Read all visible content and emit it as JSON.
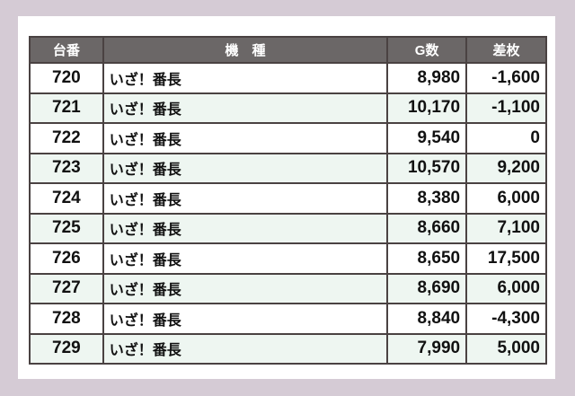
{
  "headers": [
    "台番",
    "機　種",
    "G数",
    "差枚"
  ],
  "rows": [
    {
      "no": "720",
      "model": "いざ！番長",
      "games": "8,980",
      "diff": "-1,600"
    },
    {
      "no": "721",
      "model": "いざ！番長",
      "games": "10,170",
      "diff": "-1,100"
    },
    {
      "no": "722",
      "model": "いざ！番長",
      "games": "9,540",
      "diff": "0"
    },
    {
      "no": "723",
      "model": "いざ！番長",
      "games": "10,570",
      "diff": "9,200"
    },
    {
      "no": "724",
      "model": "いざ！番長",
      "games": "8,380",
      "diff": "6,000"
    },
    {
      "no": "725",
      "model": "いざ！番長",
      "games": "8,660",
      "diff": "7,100"
    },
    {
      "no": "726",
      "model": "いざ！番長",
      "games": "8,650",
      "diff": "17,500"
    },
    {
      "no": "727",
      "model": "いざ！番長",
      "games": "8,690",
      "diff": "6,000"
    },
    {
      "no": "728",
      "model": "いざ！番長",
      "games": "8,840",
      "diff": "-4,300"
    },
    {
      "no": "729",
      "model": "いざ！番長",
      "games": "7,990",
      "diff": "5,000"
    }
  ],
  "colors": {
    "header_bg": "#6b6767",
    "alt_row_bg": "#eef6f1",
    "page_bg": "#d5cbd5"
  }
}
